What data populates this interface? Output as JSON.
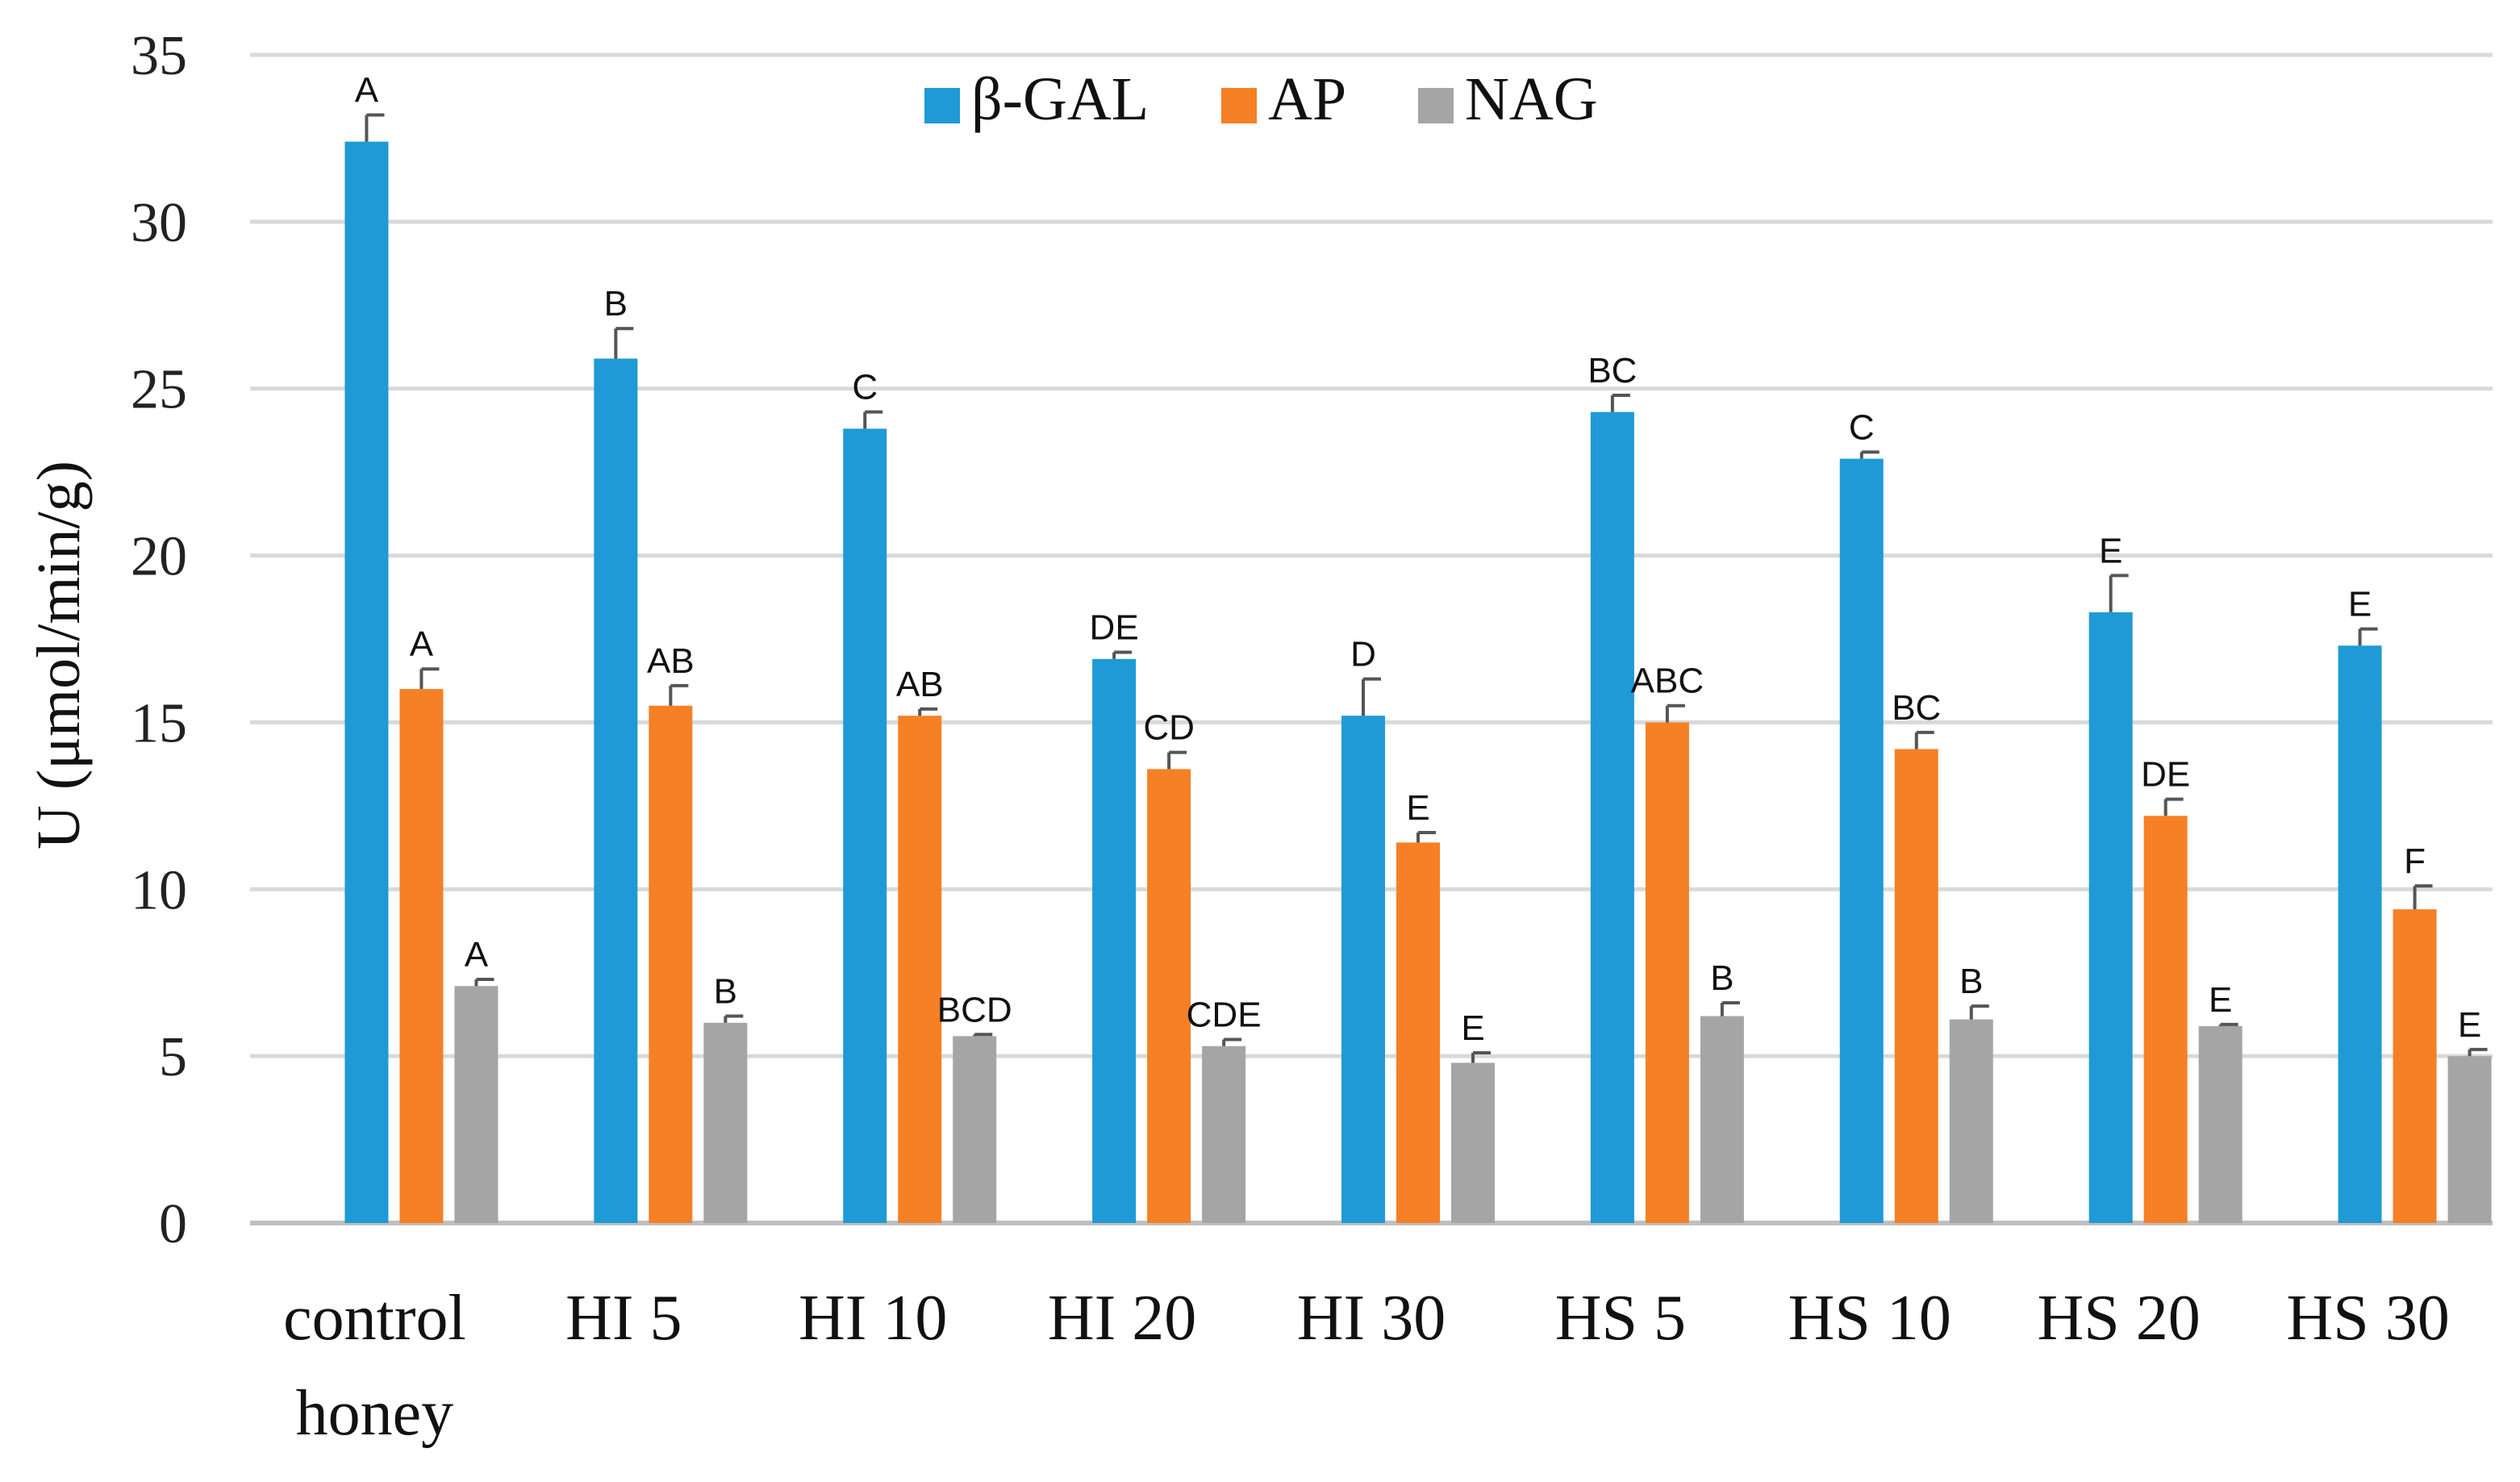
{
  "chart_data": {
    "type": "bar",
    "title": "",
    "xlabel": "",
    "ylabel": "U (μmol/min/g)",
    "ylim": [
      0,
      35
    ],
    "yticks": [
      0,
      5,
      10,
      15,
      20,
      25,
      30,
      35
    ],
    "grid": true,
    "legend_position": "top-center",
    "categories": [
      [
        "control",
        "honey"
      ],
      [
        "HI 5"
      ],
      [
        "HI 10"
      ],
      [
        "HI 20"
      ],
      [
        "HI 30"
      ],
      [
        "HS 5"
      ],
      [
        "HS 10"
      ],
      [
        "HS 20"
      ],
      [
        "HS 30"
      ]
    ],
    "series": [
      {
        "name": "β-GAL",
        "color": "#1f9ad6",
        "values": [
          32.4,
          25.9,
          23.8,
          16.9,
          15.2,
          24.3,
          22.9,
          18.3,
          17.3
        ],
        "errors": [
          0.8,
          0.9,
          0.5,
          0.2,
          1.1,
          0.5,
          0.2,
          1.1,
          0.5
        ],
        "letters": [
          "A",
          "B",
          "C",
          "DE",
          "D",
          "BC",
          "C",
          "E",
          "E"
        ]
      },
      {
        "name": "AP",
        "color": "#f58025",
        "values": [
          16.0,
          15.5,
          15.2,
          13.6,
          11.4,
          15.0,
          14.2,
          12.2,
          9.4
        ],
        "errors": [
          0.6,
          0.6,
          0.2,
          0.5,
          0.3,
          0.5,
          0.5,
          0.5,
          0.7
        ],
        "letters": [
          "A",
          "AB",
          "AB",
          "CD",
          "E",
          "ABC",
          "BC",
          "DE",
          "F"
        ]
      },
      {
        "name": "NAG",
        "color": "#a5a5a5",
        "values": [
          7.1,
          6.0,
          5.6,
          5.3,
          4.8,
          6.2,
          6.1,
          5.9,
          5.0
        ],
        "errors": [
          0.2,
          0.2,
          0.05,
          0.2,
          0.3,
          0.4,
          0.4,
          0.05,
          0.2
        ],
        "letters": [
          "A",
          "B",
          "BCD",
          "CDE",
          "E",
          "B",
          "B",
          "E",
          "E"
        ]
      }
    ]
  }
}
